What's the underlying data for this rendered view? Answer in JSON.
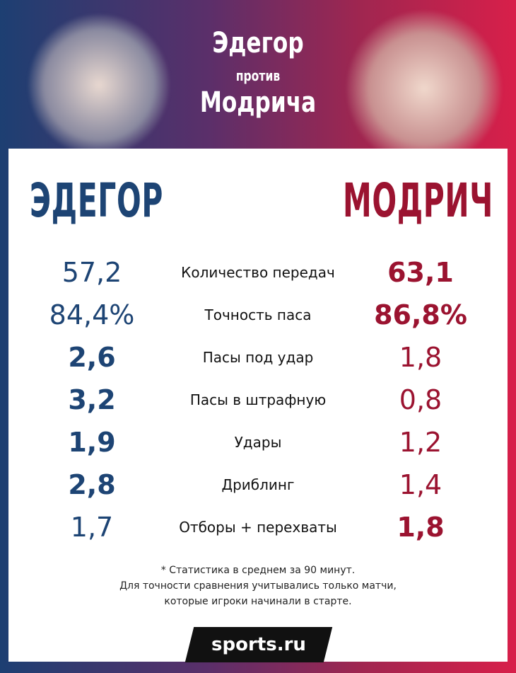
{
  "header": {
    "title_line1": "Эдегор",
    "title_line2": "против",
    "title_line3": "Модрича"
  },
  "players": {
    "left": "ЭДЕГОР",
    "right": "МОДРИЧ"
  },
  "table": {
    "rows": [
      {
        "left": "57,2",
        "label": "Количество передач",
        "right": "63,1",
        "leader": "right"
      },
      {
        "left": "84,4%",
        "label": "Точность паса",
        "right": "86,8%",
        "leader": "right"
      },
      {
        "left": "2,6",
        "label": "Пасы под удар",
        "right": "1,8",
        "leader": "left"
      },
      {
        "left": "3,2",
        "label": "Пасы в штрафную",
        "right": "0,8",
        "leader": "left"
      },
      {
        "left": "1,9",
        "label": "Удары",
        "right": "1,2",
        "leader": "left"
      },
      {
        "left": "2,8",
        "label": "Дриблинг",
        "right": "1,4",
        "leader": "left"
      },
      {
        "left": "1,7",
        "label": "Отборы + перехваты",
        "right": "1,8",
        "leader": "right"
      }
    ]
  },
  "footnote": [
    "* Статистика в среднем за 90 минут.",
    "Для точности сравнения учитывались только матчи,",
    "которые игроки начинали в старте."
  ],
  "logo": "sports.ru"
}
